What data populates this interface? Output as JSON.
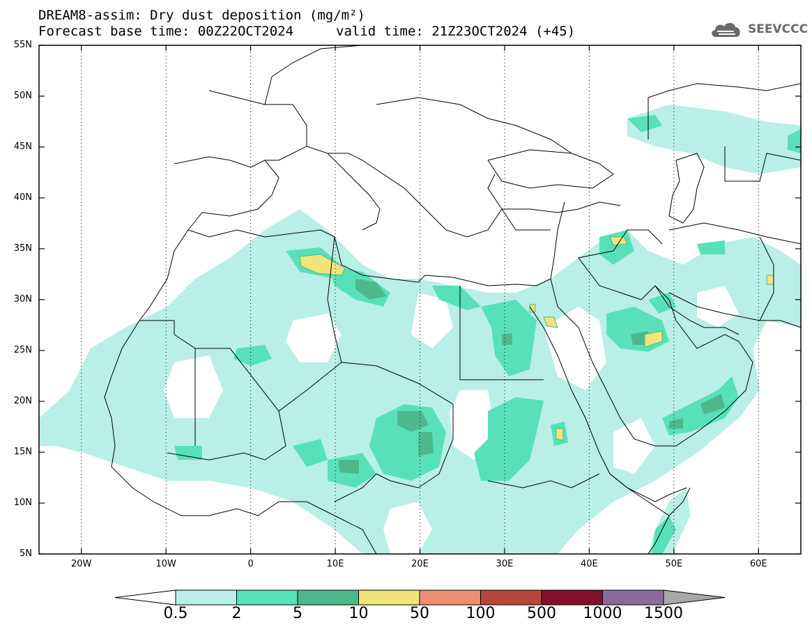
{
  "header": {
    "title_line1": "DREAM8-assim: Dry dust deposition (mg/m²)",
    "title_line2": "Forecast base time: 00Z22OCT2024",
    "valid_time": "valid time: 21Z23OCT2024 (+45)",
    "logo_text": "SEEVCCC",
    "logo_icon": "cloud-icon"
  },
  "map": {
    "lat_labels": [
      "55N",
      "50N",
      "45N",
      "40N",
      "35N",
      "30N",
      "25N",
      "20N",
      "15N",
      "10N",
      "5N"
    ],
    "lon_labels": [
      "20W",
      "10W",
      "0",
      "10E",
      "20E",
      "30E",
      "40E",
      "50E",
      "60E"
    ],
    "lon_range": [
      -25,
      65
    ],
    "lat_range": [
      5,
      55
    ]
  },
  "colorbar": {
    "levels": [
      "0.5",
      "2",
      "5",
      "10",
      "50",
      "100",
      "500",
      "1000",
      "1500"
    ],
    "colors": [
      "#b9efe6",
      "#58e1b8",
      "#4eb88d",
      "#f0e47a",
      "#ec9070",
      "#b5473a",
      "#80102e",
      "#8c6a9a",
      "#a8a8a8"
    ],
    "under_color": "#ffffff",
    "over_color": "#a8a8a8"
  }
}
